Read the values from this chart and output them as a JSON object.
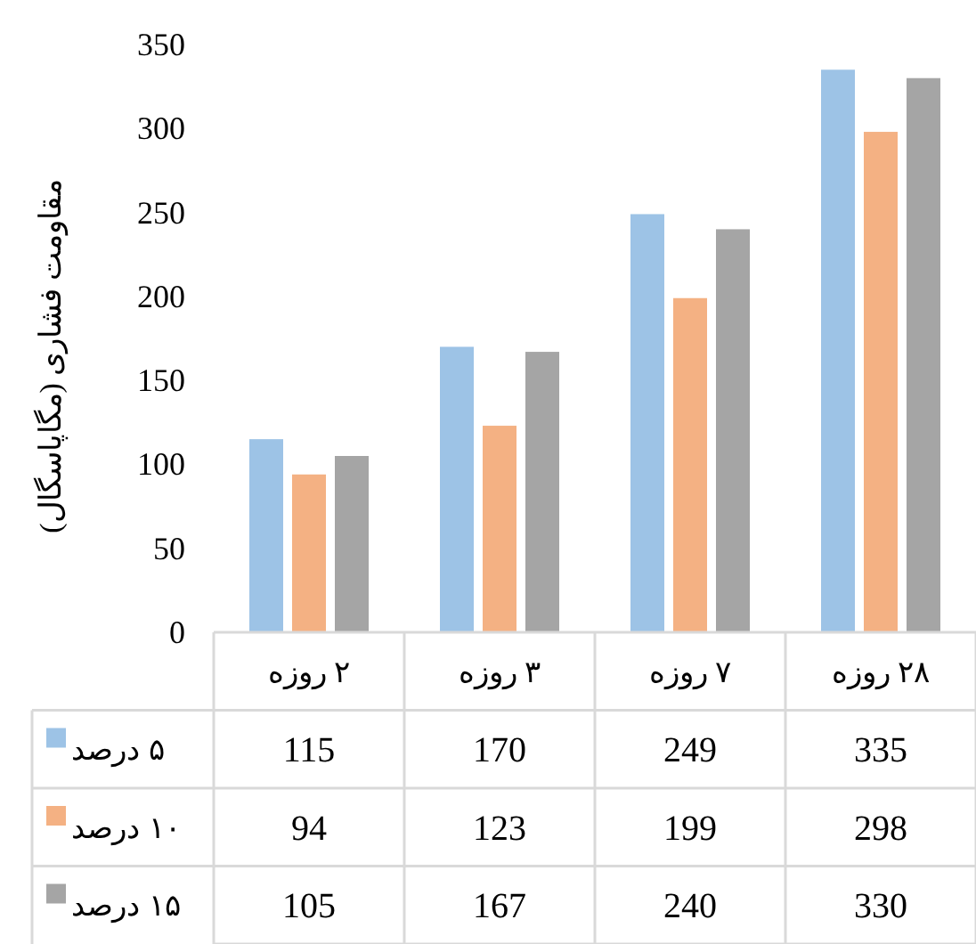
{
  "chart_data": {
    "type": "bar",
    "ylabel": "مقاومت فشاری (مگاپاسگال)",
    "categories": [
      "۲ روزه",
      "۳ روزه",
      "۷ روزه",
      "۲۸ روزه"
    ],
    "series": [
      {
        "name": "۵ درصد",
        "color": "#9dc3e6",
        "values": [
          115,
          170,
          249,
          335
        ]
      },
      {
        "name": "۱۰ درصد",
        "color": "#f4b183",
        "values": [
          94,
          123,
          199,
          298
        ]
      },
      {
        "name": "۱۵ درصد",
        "color": "#a5a5a5",
        "values": [
          105,
          167,
          240,
          330
        ]
      }
    ],
    "ylim": [
      0,
      350
    ],
    "yticks": [
      0,
      50,
      100,
      150,
      200,
      250,
      300,
      350
    ],
    "data_labels": true,
    "legend": "bottom left"
  }
}
